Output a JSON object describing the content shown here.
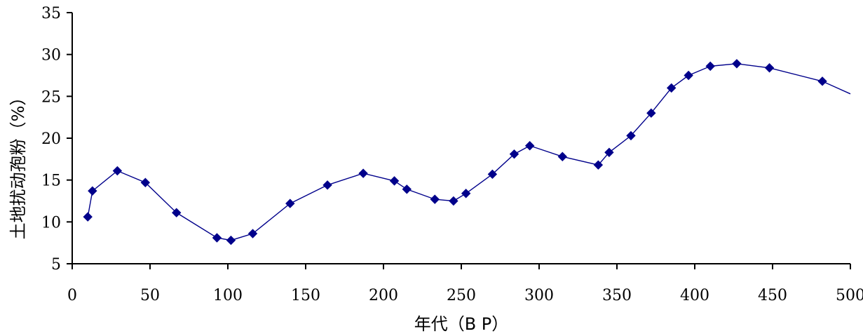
{
  "chart_data": {
    "type": "line",
    "xlabel": "年代（B P）",
    "ylabel": "土地扰动孢粉（%）",
    "xlim": [
      0,
      500
    ],
    "ylim": [
      5,
      35
    ],
    "x_ticks": [
      0,
      50,
      100,
      150,
      200,
      250,
      300,
      350,
      400,
      450,
      500
    ],
    "y_ticks": [
      5,
      10,
      15,
      20,
      25,
      30,
      35
    ],
    "grid": false,
    "legend": "none",
    "series_color": "#00008B",
    "marker": "diamond",
    "series": [
      {
        "x": [
          10,
          13,
          29,
          47,
          67,
          93,
          102,
          116,
          140,
          164,
          187,
          207,
          215,
          233,
          245,
          253,
          270,
          284,
          294,
          315,
          338,
          345,
          359,
          372,
          385,
          396,
          410,
          427,
          448,
          482,
          500
        ],
        "y": [
          10.6,
          13.7,
          16.1,
          14.7,
          11.1,
          8.1,
          7.8,
          8.6,
          12.2,
          14.4,
          15.8,
          14.9,
          13.9,
          12.7,
          12.5,
          13.4,
          15.7,
          18.1,
          19.1,
          17.8,
          16.8,
          18.3,
          20.3,
          23.0,
          26.0,
          27.5,
          28.6,
          28.9,
          28.4,
          26.8,
          25.3
        ],
        "markers": [
          true,
          true,
          true,
          true,
          true,
          true,
          true,
          true,
          true,
          true,
          true,
          true,
          true,
          true,
          true,
          true,
          true,
          true,
          true,
          true,
          true,
          true,
          true,
          true,
          true,
          true,
          true,
          true,
          true,
          true,
          false
        ]
      }
    ]
  }
}
